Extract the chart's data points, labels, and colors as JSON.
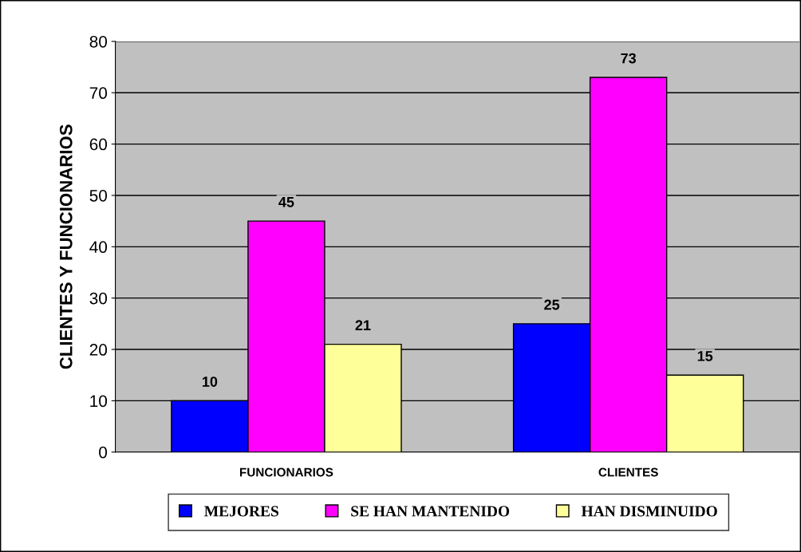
{
  "chart_data": {
    "type": "bar",
    "ylabel": "CLIENTES Y FUNCIONARIOS",
    "categories": [
      "FUNCIONARIOS",
      "CLIENTES"
    ],
    "series": [
      {
        "name": "MEJORES",
        "color": "#0000ff",
        "values": [
          10,
          25
        ]
      },
      {
        "name": "SE HAN MANTENIDO",
        "color": "#ff00ff",
        "values": [
          45,
          73
        ]
      },
      {
        "name": "HAN DISMINUIDO",
        "color": "#ffff99",
        "values": [
          21,
          15
        ]
      }
    ],
    "ylim": [
      0,
      80
    ],
    "yticks": [
      0,
      10,
      20,
      30,
      40,
      50,
      60,
      70,
      80
    ],
    "grid": "y",
    "legend": "bottom",
    "data_labels": true
  }
}
